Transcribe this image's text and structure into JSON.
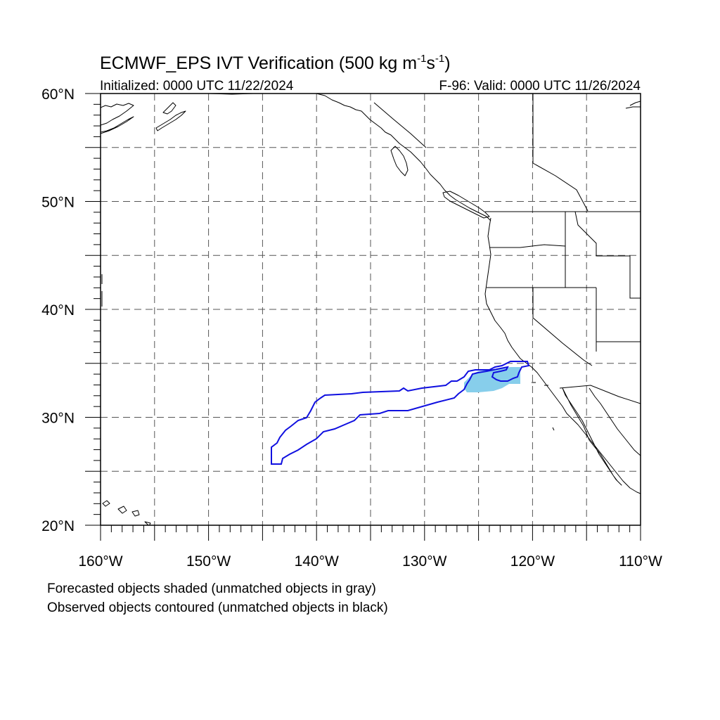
{
  "title": {
    "main_prefix": "ECMWF_EPS IVT Verification (500 kg m",
    "sup1": "-1",
    "middle": "s",
    "sup2": "-1",
    "suffix": ")"
  },
  "subtitle": {
    "initialized": "Initialized: 0000 UTC 11/22/2024",
    "valid": "F-96: Valid: 0000 UTC 11/26/2024"
  },
  "map": {
    "lon_range": [
      -160,
      -110
    ],
    "lat_range": [
      20,
      60
    ],
    "gridline_step_deg": 5,
    "lat_labels": [
      {
        "lat": 60,
        "text": "60°N"
      },
      {
        "lat": 50,
        "text": "50°N"
      },
      {
        "lat": 40,
        "text": "40°N"
      },
      {
        "lat": 30,
        "text": "30°N"
      },
      {
        "lat": 20,
        "text": "20°N"
      }
    ],
    "lon_labels": [
      {
        "lon": -160,
        "text": "160°W"
      },
      {
        "lon": -150,
        "text": "150°W"
      },
      {
        "lon": -140,
        "text": "140°W"
      },
      {
        "lon": -130,
        "text": "130°W"
      },
      {
        "lon": -120,
        "text": "120°W"
      },
      {
        "lon": -110,
        "text": "110°W"
      }
    ],
    "colors": {
      "forecast_shade": "#87ceeb",
      "observed_contour": "#1010e0",
      "gridlines": "#555555",
      "coastline": "#000000"
    }
  },
  "legend": {
    "line1": "Forecasted objects shaded (unmatched objects in gray)",
    "line2": "Observed objects contoured (unmatched objects in black)"
  }
}
